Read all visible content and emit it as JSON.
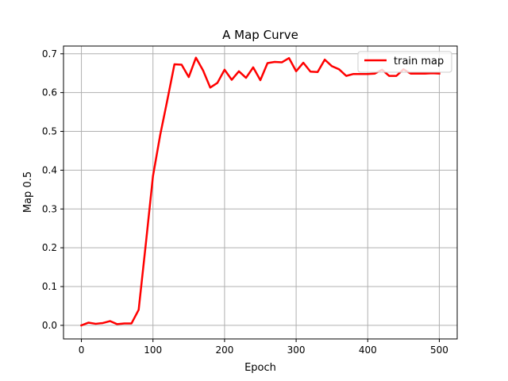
{
  "chart_data": {
    "type": "line",
    "title": "A Map Curve",
    "xlabel": "Epoch",
    "ylabel": "Map 0.5",
    "xlim": [
      -25,
      525
    ],
    "ylim": [
      -0.035,
      0.72
    ],
    "xticks": [
      0,
      100,
      200,
      300,
      400,
      500
    ],
    "yticks": [
      0.0,
      0.1,
      0.2,
      0.3,
      0.4,
      0.5,
      0.6,
      0.7
    ],
    "grid": true,
    "legend_position": "top-right",
    "series": [
      {
        "name": "train map",
        "color": "#ff0000",
        "x": [
          0,
          10,
          20,
          30,
          40,
          50,
          60,
          70,
          80,
          90,
          100,
          110,
          120,
          130,
          140,
          150,
          160,
          170,
          180,
          190,
          200,
          210,
          220,
          230,
          240,
          250,
          260,
          270,
          280,
          290,
          300,
          310,
          320,
          330,
          340,
          350,
          360,
          370,
          380,
          390,
          400,
          410,
          420,
          430,
          440,
          450,
          460,
          470,
          480,
          490,
          500
        ],
        "y": [
          0.0,
          0.007,
          0.004,
          0.006,
          0.011,
          0.003,
          0.005,
          0.005,
          0.04,
          0.21,
          0.385,
          0.49,
          0.58,
          0.673,
          0.672,
          0.64,
          0.69,
          0.657,
          0.613,
          0.625,
          0.659,
          0.633,
          0.655,
          0.638,
          0.665,
          0.632,
          0.676,
          0.679,
          0.678,
          0.689,
          0.655,
          0.677,
          0.654,
          0.653,
          0.685,
          0.668,
          0.66,
          0.643,
          0.648,
          0.648,
          0.648,
          0.649,
          0.659,
          0.643,
          0.643,
          0.66,
          0.649,
          0.649,
          0.649,
          0.65,
          0.649
        ]
      }
    ]
  }
}
